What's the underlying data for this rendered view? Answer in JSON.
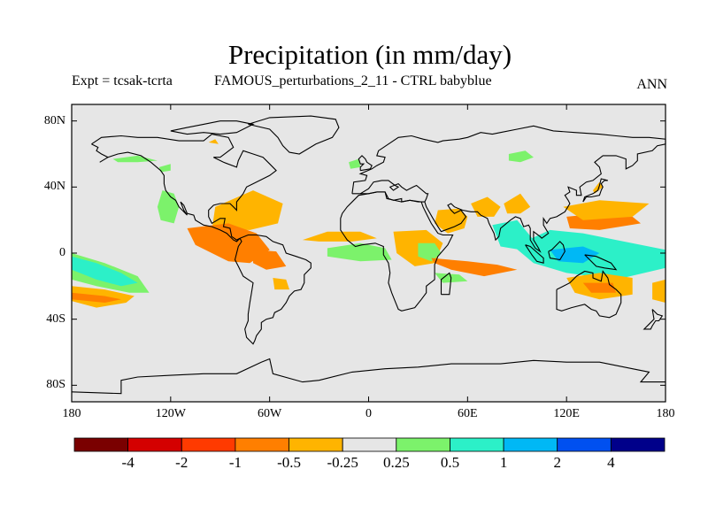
{
  "header": {
    "title": "Precipitation (in mm/day)",
    "experiment": "Expt = tcsak-tcrta",
    "description": "FAMOUS_perturbations_2_11 - CTRL babyblue",
    "season": "ANN"
  },
  "axes": {
    "lat_ticks": [
      {
        "value": 80,
        "label": "80N"
      },
      {
        "value": 40,
        "label": "40N"
      },
      {
        "value": 0,
        "label": "0"
      },
      {
        "value": -40,
        "label": "40S"
      },
      {
        "value": -80,
        "label": "80S"
      }
    ],
    "lon_ticks": [
      {
        "value": -180,
        "label": "180"
      },
      {
        "value": -120,
        "label": "120W"
      },
      {
        "value": -60,
        "label": "60W"
      },
      {
        "value": 0,
        "label": "0"
      },
      {
        "value": 60,
        "label": "60E"
      },
      {
        "value": 120,
        "label": "120E"
      },
      {
        "value": 180,
        "label": "180"
      }
    ]
  },
  "colorbar": {
    "colors": [
      "#7a0000",
      "#d40000",
      "#ff3a00",
      "#ff7f00",
      "#ffb400",
      "#e6e6e6",
      "#7cf26b",
      "#2cf0c8",
      "#00b8f5",
      "#0050f0",
      "#00008a"
    ],
    "labels": [
      "-4",
      "-2",
      "-1",
      "-0.5",
      "-0.25",
      "0.25",
      "0.5",
      "1",
      "2",
      "4"
    ]
  },
  "map": {
    "background": "#e6e6e6",
    "anomaly_regions": [
      {
        "name": "region-north-america-subarctic-wet",
        "level": "0.5",
        "color": "#7cf26b",
        "points": [
          [
            -155,
            57
          ],
          [
            -140,
            59
          ],
          [
            -128,
            56
          ],
          [
            -140,
            55
          ],
          [
            -152,
            55
          ]
        ]
      },
      {
        "name": "region-hudson-wet",
        "level": "0.5",
        "color": "#7cf26b",
        "points": [
          [
            -127,
            52
          ],
          [
            -120,
            54
          ],
          [
            -120,
            50
          ],
          [
            -126,
            49
          ]
        ]
      },
      {
        "name": "region-arctic-dry",
        "level": "-0.25",
        "color": "#ffb400",
        "points": [
          [
            -97,
            67
          ],
          [
            -93,
            69
          ],
          [
            -91,
            66
          ]
        ]
      },
      {
        "name": "region-atlantic-subtropic-wet",
        "level": "0.5",
        "color": "#7cf26b",
        "points": [
          [
            -12,
            55
          ],
          [
            -6,
            57
          ],
          [
            -5,
            52
          ],
          [
            -11,
            51
          ]
        ]
      },
      {
        "name": "region-siberia-wet",
        "level": "0.5",
        "color": "#7cf26b",
        "points": [
          [
            85,
            60
          ],
          [
            95,
            62
          ],
          [
            100,
            58
          ],
          [
            92,
            55
          ],
          [
            85,
            56
          ]
        ]
      },
      {
        "name": "region-kamchatka-dry",
        "level": "-0.25",
        "color": "#ffb400",
        "points": [
          [
            136,
            38
          ],
          [
            140,
            43
          ],
          [
            142,
            40
          ],
          [
            137,
            36
          ]
        ]
      },
      {
        "name": "region-east-pacific-wet",
        "level": "0.5",
        "color": "#7cf26b",
        "points": [
          [
            -125,
            38
          ],
          [
            -118,
            36
          ],
          [
            -115,
            28
          ],
          [
            -118,
            18
          ],
          [
            -126,
            20
          ],
          [
            -128,
            28
          ]
        ]
      },
      {
        "name": "region-central-america-dry",
        "level": "-0.25",
        "color": "#ffb400",
        "points": [
          [
            -93,
            28
          ],
          [
            -70,
            38
          ],
          [
            -52,
            30
          ],
          [
            -55,
            18
          ],
          [
            -72,
            14
          ],
          [
            -95,
            14
          ]
        ]
      },
      {
        "name": "region-caribbean-strong-dry",
        "level": "-0.5",
        "color": "#ff7f00",
        "points": [
          [
            -110,
            15
          ],
          [
            -85,
            18
          ],
          [
            -68,
            12
          ],
          [
            -60,
            2
          ],
          [
            -72,
            -6
          ],
          [
            -85,
            -5
          ],
          [
            -105,
            5
          ]
        ]
      },
      {
        "name": "region-amazon-dry",
        "level": "-0.5",
        "color": "#ff7f00",
        "points": [
          [
            -70,
            2
          ],
          [
            -56,
            1
          ],
          [
            -50,
            -8
          ],
          [
            -62,
            -10
          ],
          [
            -70,
            -6
          ]
        ]
      },
      {
        "name": "region-tropical-atlantic-wet",
        "level": "0.5",
        "color": "#7cf26b",
        "points": [
          [
            -25,
            3
          ],
          [
            -5,
            6
          ],
          [
            10,
            3
          ],
          [
            14,
            -4
          ],
          [
            -5,
            -5
          ],
          [
            -25,
            -2
          ]
        ]
      },
      {
        "name": "region-tropical-atlantic-dry",
        "level": "-0.25",
        "color": "#ffb400",
        "points": [
          [
            -40,
            8
          ],
          [
            -25,
            13
          ],
          [
            -5,
            13
          ],
          [
            5,
            9
          ],
          [
            -10,
            7
          ],
          [
            -30,
            7
          ]
        ]
      },
      {
        "name": "region-central-africa-dry",
        "level": "-0.25",
        "color": "#ffb400",
        "points": [
          [
            15,
            13
          ],
          [
            35,
            14
          ],
          [
            45,
            6
          ],
          [
            40,
            -6
          ],
          [
            28,
            -8
          ],
          [
            17,
            0
          ]
        ]
      },
      {
        "name": "region-east-africa-wet",
        "level": "0.5",
        "color": "#7cf26b",
        "points": [
          [
            30,
            6
          ],
          [
            40,
            6
          ],
          [
            44,
            0
          ],
          [
            38,
            -5
          ],
          [
            30,
            -2
          ]
        ]
      },
      {
        "name": "region-south-atlantic-dry",
        "level": "-0.25",
        "color": "#ffb400",
        "points": [
          [
            -58,
            -15
          ],
          [
            -50,
            -16
          ],
          [
            -48,
            -22
          ],
          [
            -57,
            -22
          ]
        ]
      },
      {
        "name": "region-west-india-dry",
        "level": "-0.25",
        "color": "#ffb400",
        "points": [
          [
            42,
            26
          ],
          [
            55,
            27
          ],
          [
            60,
            22
          ],
          [
            58,
            15
          ],
          [
            48,
            12
          ],
          [
            40,
            18
          ]
        ]
      },
      {
        "name": "region-arabia-dry",
        "level": "-0.25",
        "color": "#ffb400",
        "points": [
          [
            62,
            30
          ],
          [
            72,
            34
          ],
          [
            80,
            28
          ],
          [
            76,
            22
          ],
          [
            66,
            22
          ]
        ]
      },
      {
        "name": "region-india-dry",
        "level": "-0.25",
        "color": "#ffb400",
        "points": [
          [
            82,
            30
          ],
          [
            92,
            36
          ],
          [
            98,
            28
          ],
          [
            92,
            24
          ],
          [
            84,
            24
          ]
        ]
      },
      {
        "name": "region-bay-bengal-wet",
        "level": "1",
        "color": "#2cf0c8",
        "points": [
          [
            75,
            17
          ],
          [
            90,
            20
          ],
          [
            100,
            8
          ],
          [
            92,
            2
          ],
          [
            80,
            4
          ]
        ]
      },
      {
        "name": "region-indian-ocean-dry",
        "level": "-0.5",
        "color": "#ff7f00",
        "points": [
          [
            38,
            -3
          ],
          [
            60,
            -5
          ],
          [
            78,
            -7
          ],
          [
            90,
            -10
          ],
          [
            70,
            -14
          ],
          [
            50,
            -10
          ],
          [
            40,
            -6
          ]
        ]
      },
      {
        "name": "region-south-indian-wet",
        "level": "0.5",
        "color": "#7cf26b",
        "points": [
          [
            40,
            -12
          ],
          [
            55,
            -13
          ],
          [
            60,
            -17
          ],
          [
            45,
            -18
          ]
        ]
      },
      {
        "name": "region-maritime-continent-wet",
        "level": "1",
        "color": "#2cf0c8",
        "points": [
          [
            88,
            4
          ],
          [
            110,
            14
          ],
          [
            130,
            12
          ],
          [
            150,
            8
          ],
          [
            180,
            2
          ],
          [
            180,
            -9
          ],
          [
            150,
            -16
          ],
          [
            120,
            -12
          ],
          [
            100,
            -6
          ]
        ]
      },
      {
        "name": "region-warm-pool-strong-wet",
        "level": "2",
        "color": "#00b8f5",
        "points": [
          [
            110,
            2
          ],
          [
            130,
            4
          ],
          [
            140,
            0
          ],
          [
            130,
            -6
          ],
          [
            115,
            -5
          ]
        ]
      },
      {
        "name": "region-philippines-dry",
        "level": "-0.5",
        "color": "#ff7f00",
        "points": [
          [
            120,
            22
          ],
          [
            140,
            24
          ],
          [
            160,
            22
          ],
          [
            165,
            18
          ],
          [
            140,
            14
          ],
          [
            122,
            15
          ]
        ]
      },
      {
        "name": "region-tropical-pacific-dry",
        "level": "-0.25",
        "color": "#ffb400",
        "points": [
          [
            118,
            28
          ],
          [
            140,
            32
          ],
          [
            170,
            30
          ],
          [
            160,
            22
          ],
          [
            130,
            20
          ]
        ]
      },
      {
        "name": "region-south-pacific-dry",
        "level": "-0.25",
        "color": "#ffb400",
        "points": [
          [
            120,
            -15
          ],
          [
            140,
            -12
          ],
          [
            160,
            -15
          ],
          [
            160,
            -25
          ],
          [
            140,
            -28
          ],
          [
            125,
            -24
          ]
        ]
      },
      {
        "name": "region-south-pacific-strong-dry",
        "level": "-0.5",
        "color": "#ff7f00",
        "points": [
          [
            130,
            -18
          ],
          [
            148,
            -18
          ],
          [
            150,
            -24
          ],
          [
            135,
            -24
          ]
        ]
      },
      {
        "name": "region-southwest-pacific-dry",
        "level": "-0.25",
        "color": "#ffb400",
        "points": [
          [
            172,
            -18
          ],
          [
            180,
            -16
          ],
          [
            180,
            -30
          ],
          [
            172,
            -28
          ]
        ]
      },
      {
        "name": "region-equatorial-pacific-wet",
        "level": "0.5",
        "color": "#7cf26b",
        "points": [
          [
            -180,
            0
          ],
          [
            -160,
            -6
          ],
          [
            -140,
            -14
          ],
          [
            -133,
            -24
          ],
          [
            -145,
            -24
          ],
          [
            -165,
            -20
          ],
          [
            -180,
            -16
          ]
        ]
      },
      {
        "name": "region-itcz-pacific-strong-wet",
        "level": "1",
        "color": "#2cf0c8",
        "points": [
          [
            -180,
            -2
          ],
          [
            -165,
            -6
          ],
          [
            -150,
            -12
          ],
          [
            -140,
            -18
          ],
          [
            -150,
            -20
          ],
          [
            -165,
            -16
          ],
          [
            -180,
            -10
          ]
        ]
      },
      {
        "name": "region-south-pacific-convergence-dry",
        "level": "-0.25",
        "color": "#ffb400",
        "points": [
          [
            -180,
            -20
          ],
          [
            -160,
            -22
          ],
          [
            -142,
            -26
          ],
          [
            -147,
            -30
          ],
          [
            -165,
            -33
          ],
          [
            -180,
            -29
          ]
        ]
      },
      {
        "name": "region-south-pacific-convergence-strong-dry",
        "level": "-0.5",
        "color": "#ff7f00",
        "points": [
          [
            -180,
            -24
          ],
          [
            -160,
            -26
          ],
          [
            -150,
            -28
          ],
          [
            -160,
            -30
          ],
          [
            -180,
            -28
          ]
        ]
      }
    ]
  }
}
